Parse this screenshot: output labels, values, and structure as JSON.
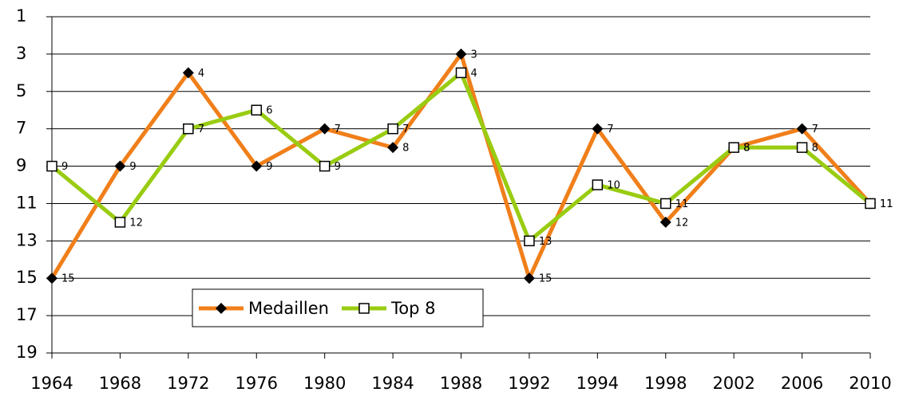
{
  "chart_data": {
    "type": "line",
    "categories": [
      "1964",
      "1968",
      "1972",
      "1976",
      "1980",
      "1984",
      "1988",
      "1992",
      "1994",
      "1998",
      "2002",
      "2006",
      "2010"
    ],
    "series": [
      {
        "name": "Medaillen",
        "color": "#f07f1a",
        "marker": "diamond",
        "values": [
          15,
          9,
          4,
          9,
          7,
          8,
          3,
          15,
          7,
          12,
          8,
          7,
          11
        ]
      },
      {
        "name": "Top 8",
        "color": "#99cc11",
        "marker": "square",
        "values": [
          9,
          12,
          7,
          6,
          9,
          7,
          4,
          13,
          10,
          11,
          8,
          8,
          11
        ]
      }
    ],
    "ylim": [
      1,
      19
    ],
    "yticks": [
      1,
      3,
      5,
      7,
      9,
      11,
      13,
      15,
      17,
      19
    ],
    "y_inverted": true,
    "grid": true,
    "legend": "lower left"
  }
}
